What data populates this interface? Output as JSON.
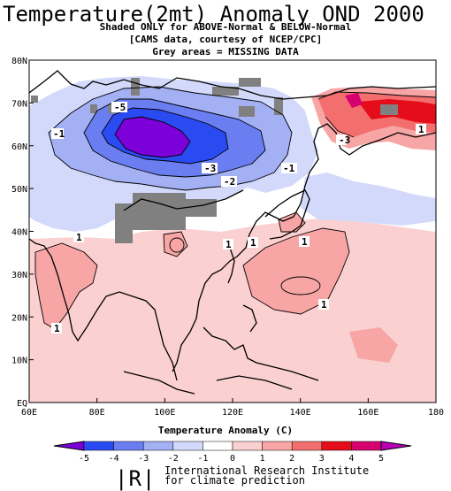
{
  "header": {
    "title": "Temperature(2mt) Anomaly OND 2000",
    "subtitle_1": "Shaded ONLY for ABOVE-Normal & BELOW-Normal",
    "subtitle_2": "[CAMS data, courtesy of NCEP/CPC]",
    "subtitle_3": "Grey areas = MISSING DATA"
  },
  "map": {
    "lon_range": [
      60,
      180
    ],
    "lat_range": [
      0,
      80
    ],
    "x_ticks": [
      "60E",
      "80E",
      "100E",
      "120E",
      "140E",
      "160E",
      "180"
    ],
    "y_ticks": [
      "EQ",
      "10N",
      "20N",
      "30N",
      "40N",
      "50N",
      "60N",
      "70N",
      "80N"
    ],
    "contour_labels": [
      "-5",
      "-1",
      "-3",
      "-2",
      "-1",
      "-3",
      "1",
      "1",
      "1",
      "1",
      "1",
      "1",
      "1"
    ]
  },
  "colorbar": {
    "title": "Temperature  Anomaly (C)",
    "ticks": [
      "-5",
      "-4",
      "-3",
      "-2",
      "-1",
      "0",
      "1",
      "2",
      "3",
      "4",
      "5"
    ],
    "colors": [
      "#7b00d9",
      "#2b4bf2",
      "#6a7ef2",
      "#a3b0f4",
      "#d3d9fb",
      "#ffffff",
      "#fbd0d0",
      "#f7a5a5",
      "#f36e6e",
      "#e60d1a",
      "#d6006e",
      "#b800b8"
    ]
  },
  "footer": {
    "logo": "|R|",
    "line1": "International Research Institute",
    "line2": "for climate prediction"
  }
}
